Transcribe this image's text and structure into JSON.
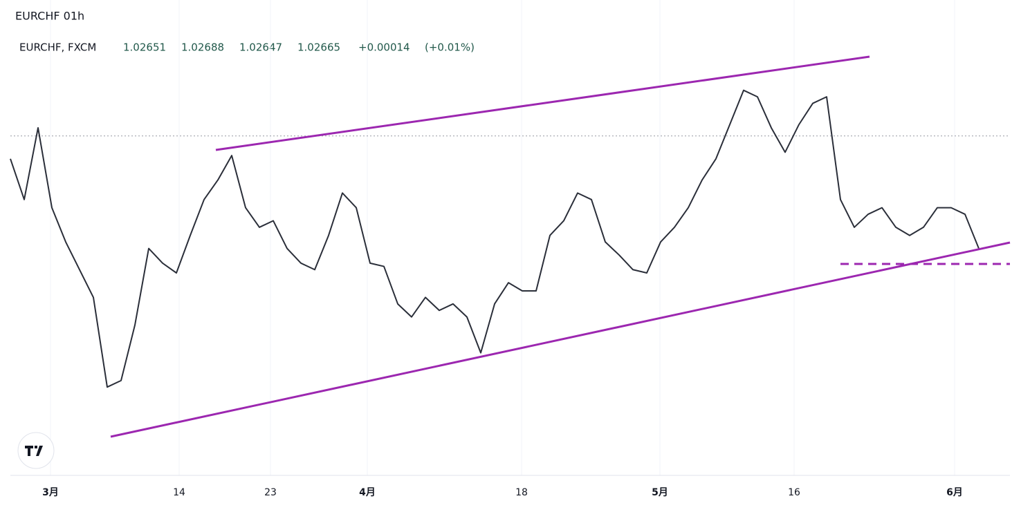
{
  "header": {
    "title": "EURCHF 01h",
    "symbol": "EURCHF, FXCM",
    "open": 1.02651,
    "high": 1.02688,
    "low": 1.02647,
    "close": 1.02665,
    "change": {
      "value": 0.00014,
      "label": "+0.00014"
    },
    "change_pct": {
      "value": 0.01,
      "label": "(+0.01%)"
    }
  },
  "chart_data": {
    "type": "line",
    "x": [
      0,
      1,
      2,
      3,
      4,
      5,
      6,
      7,
      8,
      9,
      10,
      11,
      12,
      13,
      14,
      15,
      16,
      17,
      18,
      19,
      20,
      21,
      22,
      23,
      24,
      25,
      26,
      27,
      28,
      29,
      30,
      31,
      32,
      33,
      34,
      35,
      36,
      37,
      38,
      39,
      40,
      41,
      42,
      43,
      44,
      45,
      46,
      47,
      48,
      49,
      50,
      51,
      52,
      53,
      54,
      55,
      56,
      57,
      58,
      59,
      60,
      61,
      62,
      63,
      64,
      65,
      66,
      67,
      68,
      69,
      70
    ],
    "series": [
      {
        "name": "EURCHF",
        "color": "#2a2e39",
        "values": [
          1.0326,
          1.0301,
          1.0345,
          1.0296,
          1.0275,
          1.0258,
          1.0241,
          1.0186,
          1.019,
          1.0224,
          1.0271,
          1.0262,
          1.0256,
          1.0279,
          1.0301,
          1.0313,
          1.0328,
          1.0296,
          1.0284,
          1.0288,
          1.0271,
          1.0262,
          1.0258,
          1.0279,
          1.0305,
          1.0296,
          1.0262,
          1.026,
          1.0237,
          1.0229,
          1.0241,
          1.0233,
          1.0237,
          1.0229,
          1.0207,
          1.0237,
          1.025,
          1.0245,
          1.0245,
          1.0279,
          1.0288,
          1.0305,
          1.0301,
          1.0275,
          1.0267,
          1.0258,
          1.0256,
          1.0275,
          1.0284,
          1.0296,
          1.0313,
          1.0326,
          1.0347,
          1.0368,
          1.0364,
          1.0345,
          1.033,
          1.0347,
          1.036,
          1.0364,
          1.0301,
          1.0284,
          1.0292,
          1.0296,
          1.0284,
          1.0279,
          1.0284,
          1.0296,
          1.0296,
          1.0292,
          1.0271
        ]
      }
    ],
    "xlim": [
      -0.75,
      72.25
    ],
    "ylim": [
      1.0131,
      1.0381
    ],
    "xticks": [
      {
        "value": 2.9,
        "label": "3月"
      },
      {
        "value": 12.2,
        "label": "14"
      },
      {
        "value": 18.8,
        "label": "23"
      },
      {
        "value": 25.8,
        "label": "4月"
      },
      {
        "value": 36.95,
        "label": "18"
      },
      {
        "value": 46.95,
        "label": "5月"
      },
      {
        "value": 56.65,
        "label": "16"
      },
      {
        "value": 68.25,
        "label": "6月"
      }
    ],
    "price_line": 1.034,
    "grid": true
  }
}
